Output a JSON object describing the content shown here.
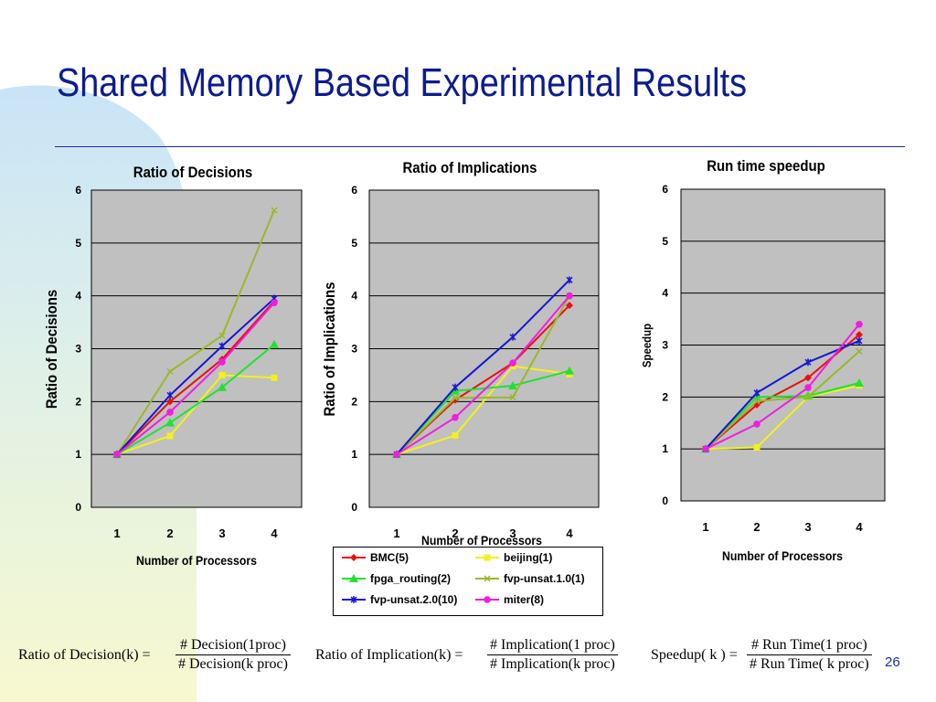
{
  "slide": {
    "title": "Shared Memory Based Experimental Results",
    "page_number": "26"
  },
  "colors": {
    "title": "#0d1c8c",
    "plot_area": "#c0c0c0",
    "background_accent": "#c9e4f7"
  },
  "legend": {
    "items": [
      {
        "name": "BMC(5)",
        "color": "#e81010",
        "marker": "diamond"
      },
      {
        "name": "beijing(1)",
        "color": "#f2f21a",
        "marker": "square"
      },
      {
        "name": "fpga_routing(2)",
        "color": "#22e034",
        "marker": "triangle"
      },
      {
        "name": "fvp-unsat.1.0(1)",
        "color": "#9ab82a",
        "marker": "x"
      },
      {
        "name": "fvp-unsat.2.0(10)",
        "color": "#1515d6",
        "marker": "star"
      },
      {
        "name": "miter(8)",
        "color": "#f01ee0",
        "marker": "circle"
      }
    ]
  },
  "chart_data": [
    {
      "type": "line",
      "title": "Ratio of Decisions",
      "xlabel": "Number of Processors",
      "ylabel": "Ratio of Decisions",
      "x": [
        1,
        2,
        3,
        4
      ],
      "ylim": [
        0,
        6
      ],
      "yticks": [
        0,
        1,
        2,
        3,
        4,
        5,
        6
      ],
      "grid": true,
      "series": [
        {
          "name": "BMC(5)",
          "values": [
            1,
            2.0,
            2.8,
            3.9
          ]
        },
        {
          "name": "beijing(1)",
          "values": [
            1,
            1.35,
            2.5,
            2.45
          ]
        },
        {
          "name": "fpga_routing(2)",
          "values": [
            1,
            1.6,
            2.27,
            3.08
          ]
        },
        {
          "name": "fvp-unsat.1.0(1)",
          "values": [
            1,
            2.57,
            3.25,
            5.62
          ]
        },
        {
          "name": "fvp-unsat.2.0(10)",
          "values": [
            1,
            2.12,
            3.05,
            3.95
          ]
        },
        {
          "name": "miter(8)",
          "values": [
            1,
            1.8,
            2.75,
            3.87
          ]
        }
      ]
    },
    {
      "type": "line",
      "title": "Ratio of Implications",
      "xlabel": "Number of Processors",
      "ylabel": "Ratio of Implications",
      "x": [
        1,
        2,
        3,
        4
      ],
      "ylim": [
        0,
        6
      ],
      "yticks": [
        0,
        1,
        2,
        3,
        4,
        5,
        6
      ],
      "grid": true,
      "series": [
        {
          "name": "BMC(5)",
          "values": [
            1,
            2.03,
            2.73,
            3.82
          ]
        },
        {
          "name": "beijing(1)",
          "values": [
            1,
            1.36,
            2.67,
            2.52
          ]
        },
        {
          "name": "fpga_routing(2)",
          "values": [
            1,
            2.2,
            2.3,
            2.58
          ]
        },
        {
          "name": "fvp-unsat.1.0(1)",
          "values": [
            1,
            2.07,
            2.08,
            4.0
          ]
        },
        {
          "name": "fvp-unsat.2.0(10)",
          "values": [
            1,
            2.27,
            3.22,
            4.3
          ]
        },
        {
          "name": "miter(8)",
          "values": [
            1,
            1.7,
            2.73,
            4.0
          ]
        }
      ]
    },
    {
      "type": "line",
      "title": "Run time speedup",
      "xlabel": "Number of Processors",
      "ylabel": "Speedup",
      "x": [
        1,
        2,
        3,
        4
      ],
      "ylim": [
        0,
        6
      ],
      "yticks": [
        0,
        1,
        2,
        3,
        4,
        5,
        6
      ],
      "grid": true,
      "series": [
        {
          "name": "BMC(5)",
          "values": [
            1,
            1.85,
            2.37,
            3.2
          ]
        },
        {
          "name": "beijing(1)",
          "values": [
            1,
            1.03,
            2.0,
            2.22
          ]
        },
        {
          "name": "fpga_routing(2)",
          "values": [
            1,
            2.0,
            2.02,
            2.27
          ]
        },
        {
          "name": "fvp-unsat.1.0(1)",
          "values": [
            1,
            1.92,
            2.0,
            2.88
          ]
        },
        {
          "name": "fvp-unsat.2.0(10)",
          "values": [
            1,
            2.08,
            2.67,
            3.08
          ]
        },
        {
          "name": "miter(8)",
          "values": [
            1,
            1.48,
            2.18,
            3.4
          ]
        }
      ]
    }
  ],
  "formulas": {
    "decision": {
      "lhs": "Ratio of  Decision(k) =",
      "num": "# Decision(1proc)",
      "den": "# Decision(k proc)"
    },
    "implication": {
      "lhs": "Ratio of  Implication(k) =",
      "num": "# Implication(1 proc)",
      "den": "# Implication(k proc)"
    },
    "speedup": {
      "lhs": "Speedup( k ) =",
      "num": "# Run  Time(1 proc)",
      "den": "# Run  Time( k  proc)"
    }
  }
}
